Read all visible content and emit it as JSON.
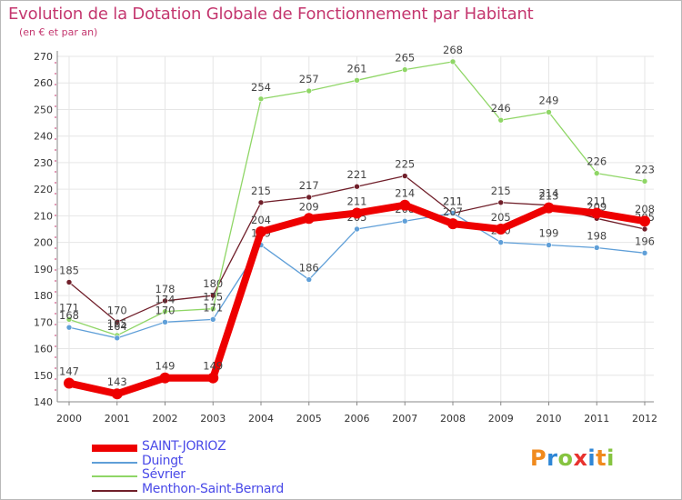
{
  "header": {
    "title": "Evolution de la Dotation Globale de Fonctionnement par Habitant",
    "subtitle": "(en € et par an)"
  },
  "logo": {
    "text": "Proxiti",
    "letters": [
      "P",
      "r",
      "o",
      "x",
      "i",
      "t",
      "i"
    ]
  },
  "chart_data": {
    "type": "line",
    "title": "Evolution de la Dotation Globale de Fonctionnement par Habitant",
    "subtitle": "(en € et par an)",
    "xlabel": "",
    "ylabel": "",
    "ylim": [
      140,
      270
    ],
    "yticks": [
      140,
      150,
      160,
      170,
      180,
      190,
      200,
      210,
      220,
      230,
      240,
      250,
      260,
      270
    ],
    "grid": true,
    "legend_position": "bottom-left",
    "categories": [
      "2000",
      "2001",
      "2002",
      "2003",
      "2004",
      "2005",
      "2006",
      "2007",
      "2008",
      "2009",
      "2010",
      "2011",
      "2012"
    ],
    "series": [
      {
        "name": "Menthon-Saint-Bernard",
        "color": "#701f2a",
        "values": [
          185,
          170,
          178,
          180,
          215,
          217,
          221,
          225,
          211,
          215,
          214,
          209,
          205
        ]
      },
      {
        "name": "Sévrier",
        "color": "#8fd666",
        "values": [
          171,
          165,
          174,
          175,
          254,
          257,
          261,
          265,
          268,
          246,
          249,
          226,
          223
        ]
      },
      {
        "name": "Duingt",
        "color": "#5f9fd8",
        "values": [
          168,
          164,
          170,
          171,
          199,
          186,
          205,
          208,
          211,
          200,
          199,
          198,
          196
        ]
      },
      {
        "name": "SAINT-JORIOZ",
        "color": "#ee0000",
        "values": [
          147,
          143,
          149,
          149,
          204,
          209,
          211,
          214,
          207,
          205,
          213,
          211,
          208
        ]
      }
    ]
  },
  "legend": {
    "items": [
      {
        "name": "SAINT-JORIOZ",
        "color": "#ee0000"
      },
      {
        "name": "Duingt",
        "color": "#5f9fd8"
      },
      {
        "name": "Sévrier",
        "color": "#8fd666"
      },
      {
        "name": "Menthon-Saint-Bernard",
        "color": "#701f2a"
      }
    ]
  }
}
